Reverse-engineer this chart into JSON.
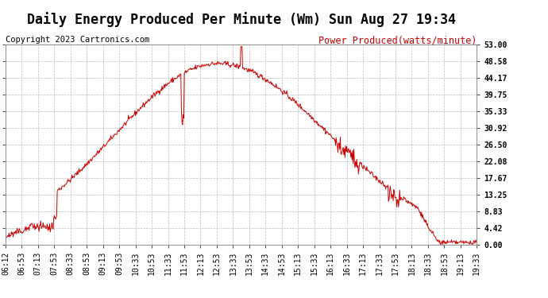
{
  "title": "Daily Energy Produced Per Minute (Wm) Sun Aug 27 19:34",
  "copyright": "Copyright 2023 Cartronics.com",
  "legend_label": "Power Produced(watts/minute)",
  "legend_color": "#cc0000",
  "line_color": "#cc0000",
  "background_color": "#ffffff",
  "ymin": 0.0,
  "ymax": 53.0,
  "yticks": [
    0.0,
    4.42,
    8.83,
    13.25,
    17.67,
    22.08,
    26.5,
    30.92,
    35.33,
    39.75,
    44.17,
    48.58,
    53.0
  ],
  "xtick_labels": [
    "06:12",
    "06:53",
    "07:13",
    "07:53",
    "08:33",
    "08:53",
    "09:13",
    "09:53",
    "10:33",
    "10:53",
    "11:33",
    "11:53",
    "12:13",
    "12:53",
    "13:33",
    "13:53",
    "14:33",
    "14:53",
    "15:13",
    "15:33",
    "16:13",
    "16:33",
    "17:13",
    "17:33",
    "17:53",
    "18:13",
    "18:33",
    "18:53",
    "19:13",
    "19:33"
  ],
  "grid_color": "#bbbbbb",
  "title_fontsize": 12,
  "copyright_fontsize": 7.5,
  "legend_fontsize": 8.5,
  "tick_fontsize": 7
}
